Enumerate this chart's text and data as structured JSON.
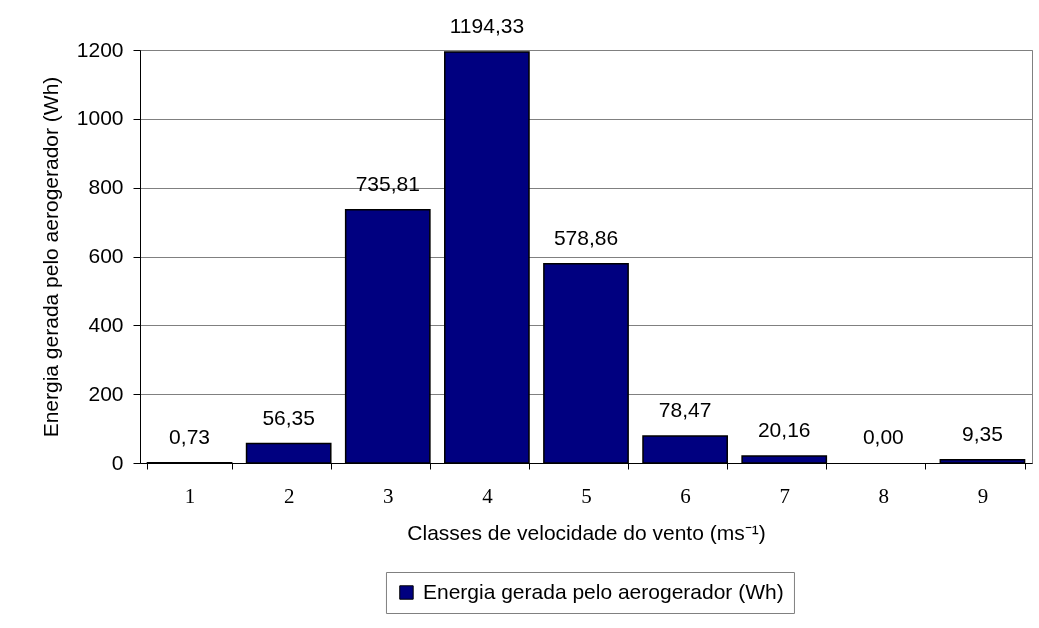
{
  "chart_data": {
    "type": "bar",
    "xlabel": "Classes de velocidade do vento (ms⁻¹)",
    "ylabel": "Energia gerada pelo aerogerador (Wh)",
    "categories": [
      "1",
      "2",
      "3",
      "4",
      "5",
      "6",
      "7",
      "8",
      "9"
    ],
    "series": [
      {
        "name": "Energia gerada pelo aerogerador (Wh)",
        "color": "#000080",
        "values": [
          0.73,
          56.35,
          735.81,
          1194.33,
          578.86,
          78.47,
          20.16,
          0.0,
          9.35
        ],
        "value_labels": [
          "0,73",
          "56,35",
          "735,81",
          "1194,33",
          "578,86",
          "78,47",
          "20,16",
          "0,00",
          "9,35"
        ]
      }
    ],
    "ylim": [
      0,
      1200
    ],
    "yticks": [
      0,
      200,
      400,
      600,
      800,
      1000,
      1200
    ],
    "grid": "y",
    "legend": "bottom"
  }
}
